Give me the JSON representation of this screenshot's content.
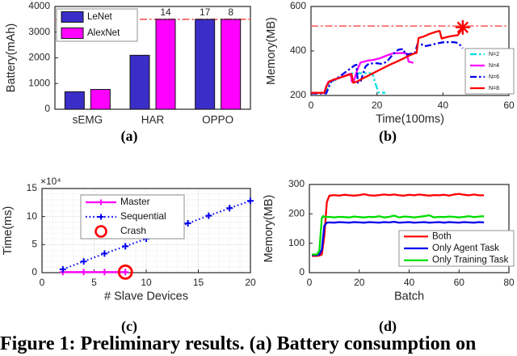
{
  "figure_caption": "Figure 1: Preliminary results. (a) Battery consumption on",
  "charts": [
    {
      "id": "a",
      "label": "(a)",
      "type": "bar",
      "ylabel": "Battery(mAh)",
      "categories": [
        "sEMG",
        "HAR",
        "OPPO"
      ],
      "ylim": [
        0,
        4000
      ],
      "yticks": [
        0,
        1000,
        2000,
        3000,
        4000
      ],
      "threshold_y": 3500,
      "threshold_color": "#f96262",
      "series": [
        {
          "name": "LeNet",
          "color": "#3b2ec8",
          "values": [
            680,
            2100,
            3500
          ]
        },
        {
          "name": "AlexNet",
          "color": "#ff00ff",
          "values": [
            770,
            3500,
            3500
          ]
        }
      ],
      "bar_labels": [
        {
          "text": "14",
          "cat": 1,
          "series": 1
        },
        {
          "text": "17",
          "cat": 2,
          "series": 0
        },
        {
          "text": "8",
          "cat": 2,
          "series": 1
        }
      ]
    },
    {
      "id": "b",
      "label": "(b)",
      "type": "line",
      "xlabel": "Time(100ms)",
      "ylabel": "Memory(MB)",
      "xlim": [
        0,
        60
      ],
      "xticks": [
        0,
        20,
        40,
        60
      ],
      "ylim": [
        200,
        600
      ],
      "yticks": [
        200,
        400,
        600
      ],
      "threshold_y": 512,
      "threshold_color": "#f96262",
      "series": [
        {
          "name": "N=2",
          "color": "#00dede",
          "dash": "dashdot",
          "points": [
            [
              0,
              210
            ],
            [
              4,
              210
            ],
            [
              4.8,
              225
            ],
            [
              5.5,
              258
            ],
            [
              7,
              268
            ],
            [
              9,
              280
            ],
            [
              12,
              298
            ],
            [
              13,
              300
            ],
            [
              18,
              300
            ],
            [
              18.8,
              293
            ],
            [
              19.5,
              255
            ],
            [
              20.5,
              213
            ],
            [
              22.5,
              212
            ]
          ]
        },
        {
          "name": "N=4",
          "color": "#ff00ff",
          "dash": "solid",
          "points": [
            [
              0,
              212
            ],
            [
              4,
              212
            ],
            [
              4.6,
              240
            ],
            [
              5.3,
              262
            ],
            [
              7,
              270
            ],
            [
              9,
              282
            ],
            [
              11.5,
              296
            ],
            [
              12,
              298
            ],
            [
              12.4,
              262
            ],
            [
              13,
              266
            ],
            [
              14,
              315
            ],
            [
              15,
              348
            ],
            [
              17,
              356
            ],
            [
              19,
              360
            ],
            [
              21,
              368
            ],
            [
              23,
              380
            ],
            [
              25,
              390
            ],
            [
              28,
              391
            ],
            [
              29,
              389
            ],
            [
              29.6,
              352
            ],
            [
              31,
              347
            ]
          ]
        },
        {
          "name": "N=6",
          "color": "#0000ee",
          "dash": "dashdot",
          "points": [
            [
              0,
              209
            ],
            [
              4.6,
              209
            ],
            [
              5.4,
              238
            ],
            [
              6.2,
              266
            ],
            [
              8,
              278
            ],
            [
              10,
              300
            ],
            [
              12,
              322
            ],
            [
              13.3,
              336
            ],
            [
              13.8,
              338
            ],
            [
              14.2,
              257
            ],
            [
              15,
              262
            ],
            [
              16.5,
              330
            ],
            [
              17.5,
              343
            ],
            [
              20,
              345
            ],
            [
              21.5,
              342
            ],
            [
              23,
              352
            ],
            [
              24.5,
              378
            ],
            [
              25.5,
              395
            ],
            [
              26.5,
              406
            ],
            [
              28,
              409
            ],
            [
              28.6,
              384
            ],
            [
              30,
              387
            ],
            [
              31.5,
              391
            ],
            [
              32.3,
              432
            ],
            [
              33.5,
              430
            ],
            [
              34.5,
              421
            ],
            [
              36,
              426
            ],
            [
              38,
              433
            ],
            [
              40,
              439
            ],
            [
              42.5,
              440
            ],
            [
              44,
              438
            ],
            [
              45,
              430
            ],
            [
              46,
              412
            ]
          ]
        },
        {
          "name": "N=8",
          "color": "#ff0000",
          "dash": "solid",
          "end_marker": "star",
          "points": [
            [
              0,
              212
            ],
            [
              4,
              212
            ],
            [
              4.7,
              242
            ],
            [
              5.5,
              263
            ],
            [
              7,
              272
            ],
            [
              9,
              281
            ],
            [
              11,
              291
            ],
            [
              12.3,
              296
            ],
            [
              12.8,
              257
            ],
            [
              14,
              263
            ],
            [
              16,
              279
            ],
            [
              18,
              294
            ],
            [
              20,
              309
            ],
            [
              22,
              324
            ],
            [
              24,
              339
            ],
            [
              26,
              352
            ],
            [
              28,
              366
            ],
            [
              30,
              381
            ],
            [
              31.5,
              390
            ],
            [
              32,
              391
            ],
            [
              32.6,
              458
            ],
            [
              34,
              464
            ],
            [
              36,
              477
            ],
            [
              38,
              487
            ],
            [
              39,
              490
            ],
            [
              39.6,
              456
            ],
            [
              41,
              462
            ],
            [
              43,
              468
            ],
            [
              44.5,
              471
            ],
            [
              45.2,
              486
            ],
            [
              46,
              506
            ]
          ]
        }
      ]
    },
    {
      "id": "c",
      "label": "(c)",
      "type": "line",
      "xlabel": "# Slave Devices",
      "ylabel": "Time(ms)",
      "y_exponent": "×10⁴",
      "xlim": [
        0,
        20
      ],
      "xticks": [
        0,
        5,
        10,
        15,
        20
      ],
      "ylim": [
        0,
        15
      ],
      "yticks": [
        0,
        5,
        10,
        15
      ],
      "grid": true,
      "series": [
        {
          "name": "Master",
          "color": "#ff00ff",
          "dash": "solid",
          "marker": "plus",
          "points": [
            [
              2,
              0.1
            ],
            [
              4,
              0.1
            ],
            [
              6,
              0.1
            ],
            [
              8,
              0.1
            ]
          ]
        },
        {
          "name": "Sequential",
          "color": "#0000ee",
          "dash": "dotted",
          "marker": "plus",
          "points": [
            [
              2,
              0.6
            ],
            [
              4,
              2.0
            ],
            [
              6,
              3.4
            ],
            [
              8,
              4.7
            ],
            [
              10,
              6.05
            ],
            [
              12,
              7.4
            ],
            [
              14,
              8.8
            ],
            [
              16,
              10.15
            ],
            [
              18,
              11.5
            ],
            [
              20,
              12.8
            ]
          ]
        },
        {
          "name": "Crash",
          "color": "#ff0000",
          "dash": "none",
          "marker": "circle",
          "points": [
            [
              8,
              0.1
            ]
          ]
        }
      ]
    },
    {
      "id": "d",
      "label": "(d)",
      "type": "line",
      "xlabel": "Batch",
      "ylabel": "Memory(MB)",
      "xlim": [
        0,
        80
      ],
      "xticks": [
        0,
        20,
        40,
        60,
        80
      ],
      "ylim": [
        0,
        300
      ],
      "yticks": [
        0,
        100,
        200,
        300
      ],
      "series": [
        {
          "name": "Both",
          "color": "#ff0000",
          "dash": "solid",
          "points": [
            [
              1,
              57
            ],
            [
              3,
              57
            ],
            [
              4,
              58
            ],
            [
              5,
              62
            ],
            [
              6,
              125
            ],
            [
              7,
              240
            ],
            [
              8,
              262
            ],
            [
              10,
              264
            ],
            [
              12,
              262
            ],
            [
              14,
              265
            ],
            [
              16,
              263
            ],
            [
              18,
              262
            ],
            [
              20,
              264
            ],
            [
              22,
              267
            ],
            [
              24,
              263
            ],
            [
              26,
              262
            ],
            [
              28,
              264
            ],
            [
              30,
              266
            ],
            [
              32,
              264
            ],
            [
              34,
              266
            ],
            [
              36,
              263
            ],
            [
              38,
              262
            ],
            [
              40,
              265
            ],
            [
              42,
              263
            ],
            [
              44,
              266
            ],
            [
              46,
              264
            ],
            [
              48,
              262
            ],
            [
              50,
              264
            ],
            [
              52,
              263
            ],
            [
              54,
              265
            ],
            [
              56,
              262
            ],
            [
              58,
              266
            ],
            [
              60,
              268
            ],
            [
              62,
              265
            ],
            [
              64,
              263
            ],
            [
              66,
              266
            ],
            [
              68,
              263
            ],
            [
              70,
              263
            ]
          ]
        },
        {
          "name": "Only Agent Task",
          "color": "#0000ee",
          "dash": "solid",
          "points": [
            [
              1,
              60
            ],
            [
              3,
              60
            ],
            [
              4,
              62
            ],
            [
              5,
              78
            ],
            [
              6,
              160
            ],
            [
              7,
              170
            ],
            [
              8,
              171
            ],
            [
              10,
              170
            ],
            [
              12,
              172
            ],
            [
              14,
              171
            ],
            [
              16,
              170
            ],
            [
              18,
              172
            ],
            [
              20,
              171
            ],
            [
              22,
              170
            ],
            [
              24,
              172
            ],
            [
              26,
              171
            ],
            [
              28,
              170
            ],
            [
              30,
              172
            ],
            [
              32,
              171
            ],
            [
              34,
              173
            ],
            [
              36,
              170
            ],
            [
              38,
              171
            ],
            [
              40,
              172
            ],
            [
              42,
              170
            ],
            [
              44,
              171
            ],
            [
              46,
              172
            ],
            [
              48,
              170
            ],
            [
              50,
              171
            ],
            [
              52,
              172
            ],
            [
              54,
              170
            ],
            [
              56,
              172
            ],
            [
              58,
              171
            ],
            [
              60,
              170
            ],
            [
              62,
              172
            ],
            [
              64,
              171
            ],
            [
              66,
              170
            ],
            [
              68,
              172
            ],
            [
              70,
              171
            ]
          ]
        },
        {
          "name": "Only Training Task",
          "color": "#00dd00",
          "dash": "solid",
          "points": [
            [
              1,
              62
            ],
            [
              3,
              62
            ],
            [
              4,
              75
            ],
            [
              5,
              186
            ],
            [
              5.5,
              193
            ],
            [
              6,
              189
            ],
            [
              8,
              190
            ],
            [
              10,
              188
            ],
            [
              12,
              190
            ],
            [
              14,
              189
            ],
            [
              16,
              188
            ],
            [
              18,
              191
            ],
            [
              20,
              189
            ],
            [
              22,
              188
            ],
            [
              24,
              190
            ],
            [
              26,
              189
            ],
            [
              28,
              192
            ],
            [
              30,
              188
            ],
            [
              32,
              190
            ],
            [
              34,
              194
            ],
            [
              36,
              188
            ],
            [
              38,
              191
            ],
            [
              40,
              190
            ],
            [
              42,
              188
            ],
            [
              44,
              190
            ],
            [
              46,
              192
            ],
            [
              48,
              195
            ],
            [
              50,
              188
            ],
            [
              52,
              190
            ],
            [
              54,
              189
            ],
            [
              56,
              191
            ],
            [
              58,
              190
            ],
            [
              60,
              188
            ],
            [
              62,
              190
            ],
            [
              64,
              192
            ],
            [
              66,
              189
            ],
            [
              68,
              191
            ],
            [
              70,
              192
            ]
          ]
        }
      ]
    }
  ]
}
